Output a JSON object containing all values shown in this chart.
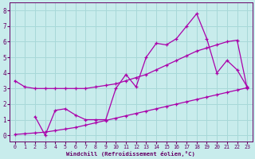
{
  "xlabel": "Windchill (Refroidissement éolien,°C)",
  "background_color": "#c8ecec",
  "grid_color": "#a8d8d8",
  "line_color": "#aa00aa",
  "xlim": [
    -0.5,
    23.5
  ],
  "ylim": [
    -0.4,
    8.5
  ],
  "xticks": [
    0,
    1,
    2,
    3,
    4,
    5,
    6,
    7,
    8,
    9,
    10,
    11,
    12,
    13,
    14,
    15,
    16,
    17,
    18,
    19,
    20,
    21,
    22,
    23
  ],
  "yticks": [
    0,
    1,
    2,
    3,
    4,
    5,
    6,
    7,
    8
  ],
  "line1_x": [
    0,
    1,
    2,
    3,
    4,
    5,
    6,
    7,
    8,
    9,
    10,
    11,
    12,
    13,
    14,
    15,
    16,
    17,
    18,
    19,
    20,
    21,
    22,
    23
  ],
  "line1_y": [
    3.5,
    3.1,
    3.0,
    3.0,
    3.0,
    3.0,
    3.0,
    3.0,
    3.1,
    3.2,
    3.3,
    3.5,
    3.7,
    3.9,
    4.2,
    4.5,
    4.8,
    5.1,
    5.4,
    5.6,
    5.8,
    6.0,
    6.1,
    3.0
  ],
  "line2_x": [
    2,
    3,
    4,
    5,
    6,
    7,
    8,
    9,
    10,
    11,
    12,
    13,
    14,
    15,
    16,
    17,
    18,
    19,
    20,
    21,
    22,
    23
  ],
  "line2_y": [
    1.2,
    0.0,
    1.6,
    1.7,
    1.3,
    1.0,
    1.0,
    1.0,
    3.0,
    3.9,
    3.1,
    5.0,
    5.9,
    5.8,
    6.2,
    7.0,
    7.8,
    6.2,
    4.0,
    4.8,
    4.2,
    3.1
  ],
  "line3_x": [
    0,
    1,
    2,
    3,
    4,
    5,
    6,
    7,
    8,
    9,
    10,
    11,
    12,
    13,
    14,
    15,
    16,
    17,
    18,
    19,
    20,
    21,
    22,
    23
  ],
  "line3_y": [
    0.05,
    0.1,
    0.15,
    0.2,
    0.3,
    0.4,
    0.5,
    0.65,
    0.8,
    0.95,
    1.1,
    1.25,
    1.4,
    1.55,
    1.7,
    1.85,
    2.0,
    2.15,
    2.3,
    2.45,
    2.6,
    2.75,
    2.9,
    3.05
  ]
}
